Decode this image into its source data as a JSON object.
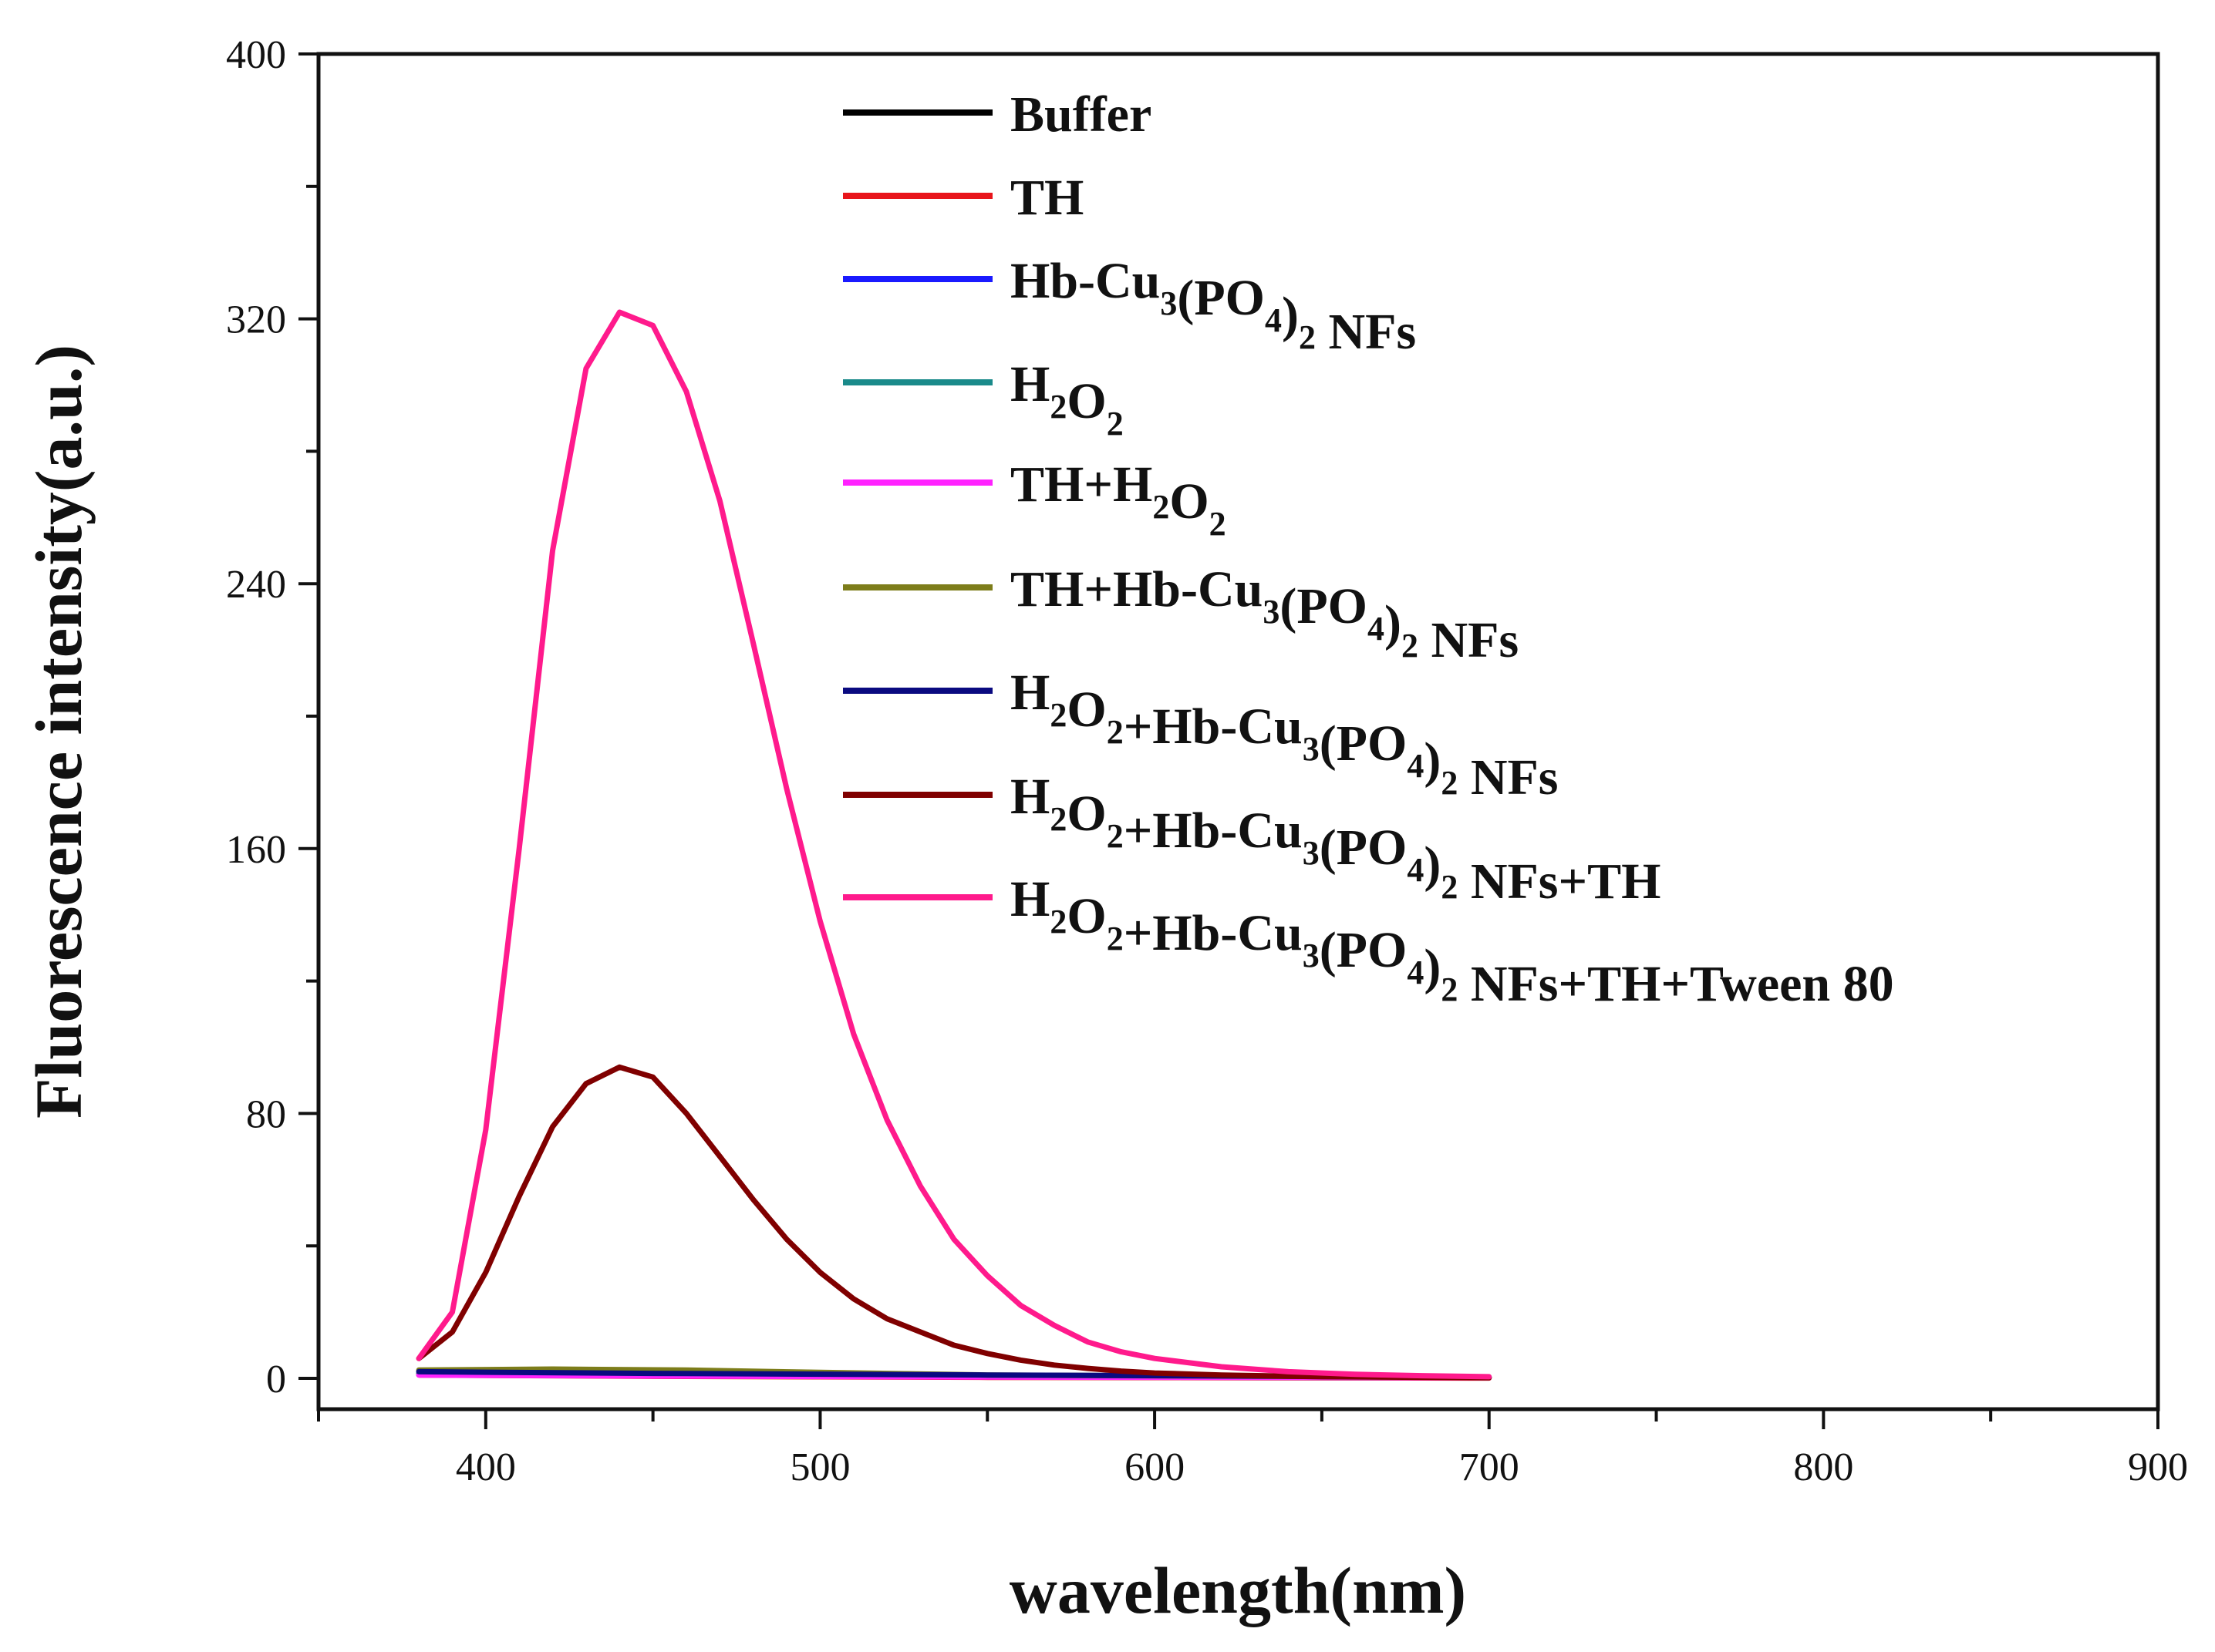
{
  "chart_data": {
    "type": "line",
    "title": "",
    "xlabel": "wavelength(nm)",
    "ylabel": "Fluorescence intensity(a.u.)",
    "xlim": [
      350,
      900
    ],
    "ylim": [
      0,
      400
    ],
    "xticks": [
      400,
      500,
      600,
      700,
      800,
      900
    ],
    "yticks": [
      0,
      80,
      160,
      240,
      320,
      400
    ],
    "grid": false,
    "legend_position": "top-right",
    "series": [
      {
        "name": "Buffer",
        "legend_parts": [
          {
            "t": "Buffer"
          }
        ],
        "color": "#000000",
        "points": [
          [
            380,
            1.5
          ],
          [
            450,
            0.8
          ],
          [
            550,
            0.4
          ],
          [
            700,
            0.2
          ]
        ]
      },
      {
        "name": "TH",
        "legend_parts": [
          {
            "t": "TH"
          }
        ],
        "color": "#e8151b",
        "points": [
          [
            380,
            1.0
          ],
          [
            450,
            0.6
          ],
          [
            550,
            0.3
          ],
          [
            700,
            0.1
          ]
        ]
      },
      {
        "name": "Hb-Cu3(PO4)2 NFs",
        "legend_parts": [
          {
            "t": "Hb-Cu"
          },
          {
            "sub": "3"
          },
          {
            "t": "(PO"
          },
          {
            "sub": "4"
          },
          {
            "t": ")"
          },
          {
            "sub": "2"
          },
          {
            "t": " NFs"
          }
        ],
        "color": "#1a1aff",
        "points": [
          [
            380,
            2.0
          ],
          [
            450,
            1.2
          ],
          [
            550,
            0.7
          ],
          [
            700,
            0.3
          ]
        ]
      },
      {
        "name": "H2O2",
        "legend_parts": [
          {
            "t": "H"
          },
          {
            "sub": "2"
          },
          {
            "t": "O"
          },
          {
            "sub": "2"
          }
        ],
        "color": "#1a8a8a",
        "points": [
          [
            380,
            1.2
          ],
          [
            450,
            0.8
          ],
          [
            550,
            0.5
          ],
          [
            700,
            0.2
          ]
        ]
      },
      {
        "name": "TH+H2O2",
        "legend_parts": [
          {
            "t": "TH+H"
          },
          {
            "sub": "2"
          },
          {
            "t": "O"
          },
          {
            "sub": "2"
          }
        ],
        "color": "#ff22ff",
        "points": [
          [
            380,
            1.0
          ],
          [
            450,
            0.7
          ],
          [
            550,
            0.4
          ],
          [
            700,
            0.2
          ]
        ]
      },
      {
        "name": "TH+Hb-Cu3(PO4)2 NFs",
        "legend_parts": [
          {
            "t": "TH+Hb-Cu"
          },
          {
            "sub": "3"
          },
          {
            "t": "(PO"
          },
          {
            "sub": "4"
          },
          {
            "t": ")"
          },
          {
            "sub": "2"
          },
          {
            "t": " NFs"
          }
        ],
        "color": "#7d7d1a",
        "points": [
          [
            380,
            2.5
          ],
          [
            420,
            2.8
          ],
          [
            460,
            2.5
          ],
          [
            500,
            1.8
          ],
          [
            550,
            1.0
          ],
          [
            700,
            0.3
          ]
        ]
      },
      {
        "name": "H2O2+Hb-Cu3(PO4)2 NFs",
        "legend_parts": [
          {
            "t": "H"
          },
          {
            "sub": "2"
          },
          {
            "t": "O"
          },
          {
            "sub": "2"
          },
          {
            "t": "+Hb-Cu"
          },
          {
            "sub": "3"
          },
          {
            "t": "(PO"
          },
          {
            "sub": "4"
          },
          {
            "t": ")"
          },
          {
            "sub": "2"
          },
          {
            "t": " NFs"
          }
        ],
        "color": "#0a0a80",
        "points": [
          [
            380,
            2.0
          ],
          [
            450,
            1.5
          ],
          [
            550,
            1.0
          ],
          [
            700,
            0.4
          ]
        ]
      },
      {
        "name": "H2O2+Hb-Cu3(PO4)2 NFs+TH",
        "legend_parts": [
          {
            "t": "H"
          },
          {
            "sub": "2"
          },
          {
            "t": "O"
          },
          {
            "sub": "2"
          },
          {
            "t": "+Hb-Cu"
          },
          {
            "sub": "3"
          },
          {
            "t": "(PO"
          },
          {
            "sub": "4"
          },
          {
            "t": ")"
          },
          {
            "sub": "2"
          },
          {
            "t": " NFs+TH"
          }
        ],
        "color": "#800000",
        "points": [
          [
            380,
            6
          ],
          [
            390,
            14
          ],
          [
            400,
            32
          ],
          [
            410,
            55
          ],
          [
            420,
            76
          ],
          [
            430,
            89
          ],
          [
            440,
            94
          ],
          [
            450,
            91
          ],
          [
            460,
            80
          ],
          [
            470,
            67
          ],
          [
            480,
            54
          ],
          [
            490,
            42
          ],
          [
            500,
            32
          ],
          [
            510,
            24
          ],
          [
            520,
            18
          ],
          [
            530,
            14
          ],
          [
            540,
            10
          ],
          [
            550,
            7.5
          ],
          [
            560,
            5.5
          ],
          [
            570,
            4
          ],
          [
            580,
            3
          ],
          [
            590,
            2.2
          ],
          [
            600,
            1.6
          ],
          [
            620,
            1.0
          ],
          [
            650,
            0.5
          ],
          [
            700,
            0.2
          ]
        ]
      },
      {
        "name": "H2O2+Hb-Cu3(PO4)2 NFs+TH+Tween 80",
        "legend_parts": [
          {
            "t": "H"
          },
          {
            "sub": "2"
          },
          {
            "t": "O"
          },
          {
            "sub": "2"
          },
          {
            "t": "+Hb-Cu"
          },
          {
            "sub": "3"
          },
          {
            "t": "(PO"
          },
          {
            "sub": "4"
          },
          {
            "t": ")"
          },
          {
            "sub": "2"
          },
          {
            "t": " NFs+TH+Tween 80"
          }
        ],
        "color": "#ff1a8c",
        "points": [
          [
            380,
            6
          ],
          [
            390,
            20
          ],
          [
            400,
            75
          ],
          [
            410,
            160
          ],
          [
            420,
            250
          ],
          [
            430,
            305
          ],
          [
            440,
            322
          ],
          [
            450,
            318
          ],
          [
            460,
            298
          ],
          [
            470,
            265
          ],
          [
            480,
            222
          ],
          [
            490,
            178
          ],
          [
            500,
            138
          ],
          [
            510,
            104
          ],
          [
            520,
            78
          ],
          [
            530,
            58
          ],
          [
            540,
            42
          ],
          [
            550,
            31
          ],
          [
            560,
            22
          ],
          [
            570,
            16
          ],
          [
            580,
            11
          ],
          [
            590,
            8
          ],
          [
            600,
            6
          ],
          [
            620,
            3.5
          ],
          [
            640,
            2
          ],
          [
            660,
            1.2
          ],
          [
            680,
            0.8
          ],
          [
            700,
            0.5
          ]
        ]
      }
    ]
  }
}
